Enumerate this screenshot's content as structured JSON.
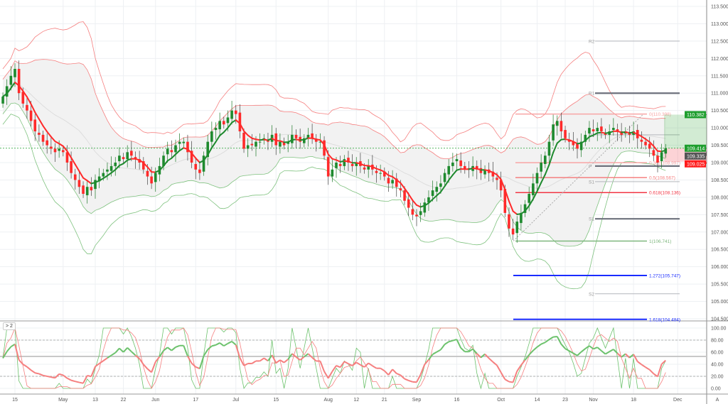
{
  "chart_data": {
    "type": "candlestick",
    "price_axis": {
      "ylim": [
        104.5,
        113.5
      ],
      "ticks": [
        "113.500",
        "113.000",
        "112.500",
        "112.000",
        "111.500",
        "111.000",
        "110.500",
        "110.000",
        "109.500",
        "109.000",
        "108.500",
        "108.000",
        "107.500",
        "107.000",
        "106.500",
        "106.000",
        "105.500",
        "105.000",
        "104.500"
      ]
    },
    "x_ticks": [
      {
        "label": "15",
        "bar": 0
      },
      {
        "label": "May",
        "bar": 12
      },
      {
        "label": "13",
        "bar": 20
      },
      {
        "label": "22",
        "bar": 27
      },
      {
        "label": "Jun",
        "bar": 35
      },
      {
        "label": "17",
        "bar": 45
      },
      {
        "label": "Jul",
        "bar": 55
      },
      {
        "label": "15",
        "bar": 65
      },
      {
        "label": "Aug",
        "bar": 78
      },
      {
        "label": "12",
        "bar": 85
      },
      {
        "label": "21",
        "bar": 92
      },
      {
        "label": "Sep",
        "bar": 100
      },
      {
        "label": "16",
        "bar": 110
      },
      {
        "label": "Oct",
        "bar": 121
      },
      {
        "label": "14",
        "bar": 130
      },
      {
        "label": "23",
        "bar": 137
      },
      {
        "label": "Nov",
        "bar": 144
      },
      {
        "label": "18",
        "bar": 154
      },
      {
        "label": "Dec",
        "bar": 165
      }
    ],
    "first_bar": -3,
    "closes": [
      110.9,
      111.2,
      111.5,
      111.7,
      111.0,
      110.7,
      110.5,
      110.2,
      109.9,
      109.8,
      109.6,
      109.5,
      109.4,
      109.3,
      109.4,
      109.3,
      109.0,
      108.7,
      108.5,
      108.3,
      108.1,
      108.3,
      108.2,
      108.5,
      108.6,
      108.7,
      108.8,
      108.9,
      109.0,
      109.2,
      109.1,
      109.3,
      109.2,
      109.1,
      109.0,
      108.8,
      108.6,
      108.4,
      108.7,
      108.9,
      109.2,
      109.4,
      109.3,
      109.5,
      109.6,
      109.6,
      109.3,
      109.0,
      108.8,
      108.7,
      109.2,
      109.6,
      109.9,
      110.0,
      110.2,
      110.1,
      110.3,
      110.5,
      110.4,
      109.9,
      109.4,
      109.5,
      109.5,
      109.6,
      109.6,
      109.7,
      109.6,
      109.8,
      109.5,
      109.6,
      109.5,
      109.6,
      109.8,
      109.7,
      109.6,
      109.7,
      109.8,
      109.7,
      109.6,
      109.6,
      109.2,
      108.6,
      108.8,
      109.0,
      108.9,
      109.1,
      109.0,
      108.9,
      109.0,
      108.9,
      108.8,
      108.9,
      108.8,
      108.7,
      108.7,
      108.6,
      108.4,
      108.5,
      108.3,
      108.2,
      107.9,
      107.7,
      107.5,
      107.45,
      107.6,
      107.85,
      108.0,
      108.2,
      108.3,
      108.4,
      108.7,
      108.9,
      109.0,
      109.1,
      108.9,
      108.8,
      108.8,
      108.9,
      108.8,
      108.7,
      108.8,
      108.7,
      108.6,
      108.5,
      108.2,
      107.55,
      107.1,
      106.93,
      107.3,
      107.55,
      107.8,
      108.1,
      108.4,
      108.7,
      109.0,
      109.2,
      109.6,
      110.1,
      110.2,
      109.9,
      109.7,
      109.6,
      109.5,
      109.4,
      109.6,
      109.8,
      110.0,
      109.9,
      110.0,
      109.9,
      109.8,
      109.9,
      110.0,
      109.9,
      109.8,
      109.9,
      109.8,
      109.9,
      109.7,
      109.6,
      109.5,
      109.4,
      109.2,
      109.0,
      109.3,
      109.414
    ],
    "fib_levels": [
      {
        "label": "0(110.398)",
        "price": 110.398,
        "color": "#f8a5a5"
      },
      {
        "label": "0.382(108.997)",
        "price": 108.997,
        "color": "#f8a5a5"
      },
      {
        "label": "0.5(108.567)",
        "price": 108.567,
        "color": "#f57f7f"
      },
      {
        "label": "0.618(108.136)",
        "price": 108.136,
        "color": "#f23645"
      },
      {
        "label": "1(106.741)",
        "price": 106.741,
        "color": "#7fb77f"
      },
      {
        "label": "1.272(105.747)",
        "price": 105.747,
        "color": "#1a2cff"
      },
      {
        "label": "1.618(104.484)",
        "price": 104.484,
        "color": "#1a2cff"
      }
    ],
    "pivots": [
      {
        "label": "R2",
        "price": 112.5,
        "weight": "thin"
      },
      {
        "label": "R1",
        "price": 111.0,
        "weight": "thick"
      },
      {
        "label": "R1",
        "price": 109.8,
        "weight": "thin"
      },
      {
        "label": "P",
        "price": 108.9,
        "weight": "thick"
      },
      {
        "label": "S1",
        "price": 108.45,
        "weight": "thin"
      },
      {
        "label": "S1",
        "price": 107.38,
        "weight": "thick"
      },
      {
        "label": "S2",
        "price": 105.22,
        "weight": "thin"
      }
    ],
    "position": {
      "target": 110.382,
      "entry": 109.414,
      "stop": 109.025
    },
    "price_labels": [
      {
        "text": "110.382",
        "price": 110.382,
        "color": "#1e9e2e"
      },
      {
        "text": "109.414",
        "price": 109.414,
        "color": "#1e9e2e"
      },
      {
        "text": "109.335",
        "price": 109.335,
        "color": "#555555"
      },
      {
        "text": "109.025",
        "price": 109.025,
        "color": "#ff1a1a"
      }
    ],
    "oscillator": {
      "ylim": [
        0,
        100
      ],
      "ticks": [
        "100.00",
        "80.00",
        "60.00",
        "40.00",
        "20.00",
        "0.00"
      ],
      "bands": [
        80,
        20
      ],
      "midline": 53
    },
    "colors": {
      "up": "#1e8a2e",
      "down": "#ff2a2a",
      "band_up": "#f57f7f",
      "band_dn": "#7fc27f",
      "fill": "#f2f2f2"
    }
  },
  "ui": {
    "osc_toggle": "> 2",
    "axis_mode": "A"
  }
}
